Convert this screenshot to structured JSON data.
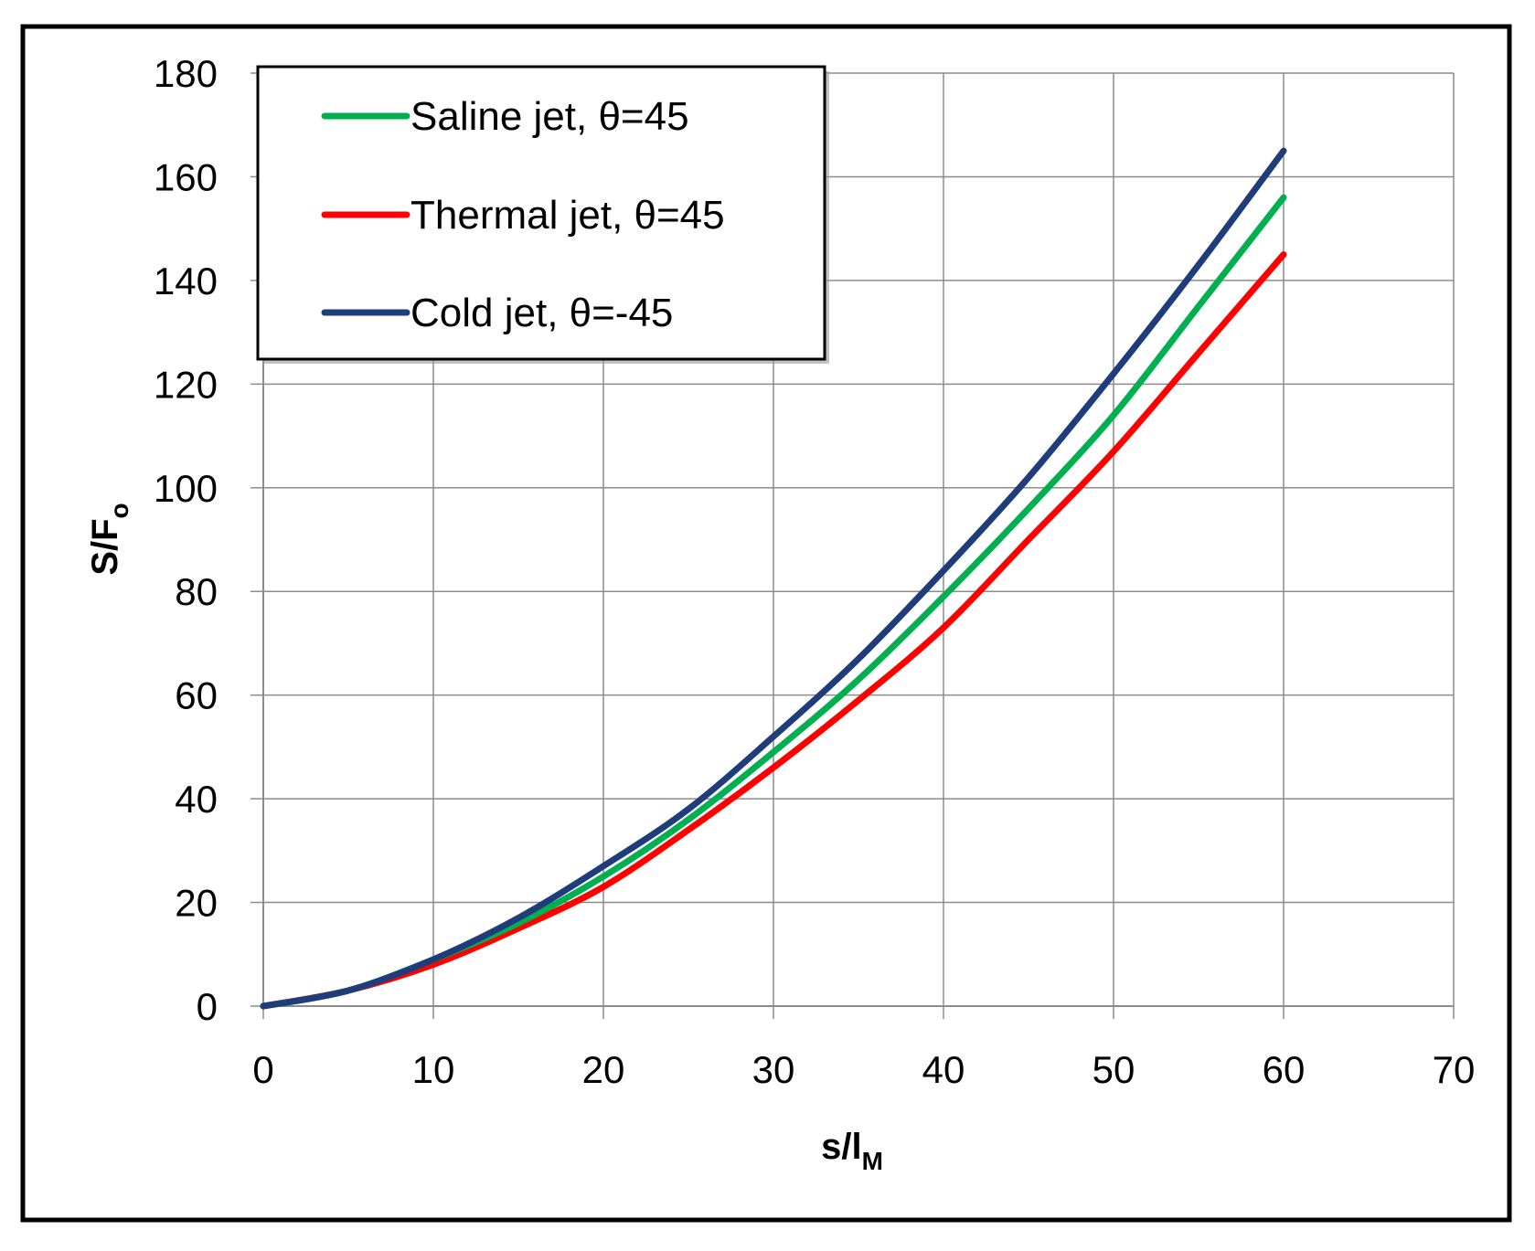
{
  "chart_data": {
    "type": "line",
    "title": "",
    "xlabel": "s/l",
    "xlabel_sub": "M",
    "ylabel": "S/F",
    "ylabel_sub": "o",
    "xlim": [
      0,
      70
    ],
    "ylim": [
      0,
      180
    ],
    "x_ticks": [
      0,
      10,
      20,
      30,
      40,
      50,
      60,
      70
    ],
    "y_ticks": [
      0,
      20,
      40,
      60,
      80,
      100,
      120,
      140,
      160,
      180
    ],
    "grid": true,
    "legend_position": "top-left",
    "series": [
      {
        "name": "Saline jet, θ=45",
        "color": "#00b050",
        "x": [
          0,
          5,
          10,
          15,
          20,
          25,
          30,
          35,
          40,
          45,
          50,
          55,
          60
        ],
        "y": [
          0,
          3,
          9,
          16,
          25,
          36,
          49,
          63,
          79,
          96,
          114,
          135,
          156
        ]
      },
      {
        "name": "Thermal jet, θ=45",
        "color": "#ff0000",
        "x": [
          0,
          5,
          10,
          15,
          20,
          25,
          30,
          35,
          40,
          45,
          50,
          55,
          60
        ],
        "y": [
          0,
          3,
          8,
          15,
          23,
          34,
          46,
          59,
          73,
          90,
          107,
          126,
          145
        ]
      },
      {
        "name": "Cold jet, θ=-45",
        "color": "#1f3d7a",
        "x": [
          0,
          5,
          10,
          15,
          20,
          25,
          30,
          35,
          40,
          45,
          50,
          55,
          60
        ],
        "y": [
          0,
          3,
          9,
          17,
          27,
          38,
          52,
          67,
          84,
          102,
          122,
          143,
          165
        ]
      }
    ]
  }
}
